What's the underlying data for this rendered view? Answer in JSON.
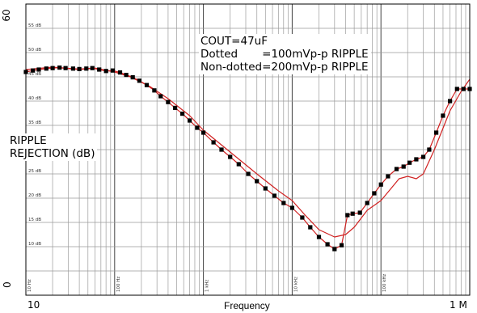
{
  "chart_data": {
    "type": "line",
    "xlabel": "Frequency",
    "xscale": "log",
    "xlim": [
      10,
      1000000
    ],
    "ylim": [
      0,
      60
    ],
    "x_end_labels": [
      "10",
      "1 M"
    ],
    "y_end_labels": [
      "0",
      "60"
    ],
    "y_tick_labels": [
      "10 dB",
      "15 dB",
      "20 dB",
      "25 dB",
      "30 dB",
      "35 dB",
      "40 dB",
      "45 dB",
      "50 dB",
      "55 dB"
    ],
    "decade_labels": [
      "10 Hz",
      "100 Hz",
      "1 kHz",
      "10 kHz",
      "100 kHz"
    ],
    "ylabel_lines": [
      "RIPPLE",
      "REJECTION (dB)"
    ],
    "annotation_lines": [
      "COUT=47uF",
      "Dotted       =100mVp-p RIPPLE",
      "Non-dotted=200mVp-p RIPPLE"
    ],
    "grid": true,
    "line_color": "#d02020",
    "marker_color": "#000000",
    "series": [
      {
        "style": "solid",
        "points": [
          [
            10,
            46.5
          ],
          [
            20,
            47
          ],
          [
            40,
            46.5
          ],
          [
            60,
            46.8
          ],
          [
            100,
            46
          ],
          [
            150,
            45
          ],
          [
            250,
            43
          ],
          [
            400,
            40.5
          ],
          [
            700,
            37
          ],
          [
            1000,
            34
          ],
          [
            2000,
            29.5
          ],
          [
            4000,
            25
          ],
          [
            7000,
            21.5
          ],
          [
            10000,
            19.5
          ],
          [
            14000,
            16.5
          ],
          [
            20000,
            13.5
          ],
          [
            30000,
            12
          ],
          [
            40000,
            12.5
          ],
          [
            50000,
            14
          ],
          [
            70000,
            17.5
          ],
          [
            100000,
            19.5
          ],
          [
            130000,
            22
          ],
          [
            160000,
            24
          ],
          [
            200000,
            24.5
          ],
          [
            250000,
            24
          ],
          [
            300000,
            25
          ],
          [
            400000,
            30
          ],
          [
            600000,
            38
          ],
          [
            800000,
            42
          ],
          [
            1000000,
            44.5
          ]
        ]
      },
      {
        "style": "dotted",
        "points": [
          [
            10,
            46
          ],
          [
            12,
            46.3
          ],
          [
            14,
            46.5
          ],
          [
            17,
            46.7
          ],
          [
            20,
            46.8
          ],
          [
            24,
            46.9
          ],
          [
            28,
            46.8
          ],
          [
            34,
            46.7
          ],
          [
            40,
            46.6
          ],
          [
            48,
            46.7
          ],
          [
            56,
            46.8
          ],
          [
            67,
            46.5
          ],
          [
            80,
            46.2
          ],
          [
            95,
            46.3
          ],
          [
            115,
            45.9
          ],
          [
            135,
            45.4
          ],
          [
            160,
            44.9
          ],
          [
            190,
            44.2
          ],
          [
            230,
            43.3
          ],
          [
            280,
            42.2
          ],
          [
            330,
            41
          ],
          [
            400,
            39.8
          ],
          [
            480,
            38.6
          ],
          [
            580,
            37.4
          ],
          [
            700,
            36
          ],
          [
            850,
            34.5
          ],
          [
            1000,
            33.5
          ],
          [
            1300,
            31.5
          ],
          [
            1600,
            30
          ],
          [
            2000,
            28.5
          ],
          [
            2500,
            27
          ],
          [
            3200,
            25
          ],
          [
            4000,
            23.5
          ],
          [
            5000,
            22
          ],
          [
            6300,
            20.5
          ],
          [
            8000,
            19
          ],
          [
            10000,
            18
          ],
          [
            13000,
            16
          ],
          [
            16000,
            14
          ],
          [
            20000,
            12
          ],
          [
            25000,
            10.5
          ],
          [
            30000,
            9.5
          ],
          [
            36000,
            10.3
          ],
          [
            42000,
            16.5
          ],
          [
            48000,
            16.8
          ],
          [
            58000,
            17
          ],
          [
            70000,
            19
          ],
          [
            84000,
            21
          ],
          [
            100000,
            22.8
          ],
          [
            120000,
            24.5
          ],
          [
            150000,
            26
          ],
          [
            180000,
            26.5
          ],
          [
            210000,
            27.3
          ],
          [
            250000,
            28
          ],
          [
            300000,
            28.5
          ],
          [
            350000,
            30
          ],
          [
            420000,
            33.5
          ],
          [
            500000,
            37
          ],
          [
            600000,
            40
          ],
          [
            720000,
            42.5
          ],
          [
            850000,
            42.5
          ],
          [
            1000000,
            42.5
          ]
        ]
      }
    ]
  }
}
